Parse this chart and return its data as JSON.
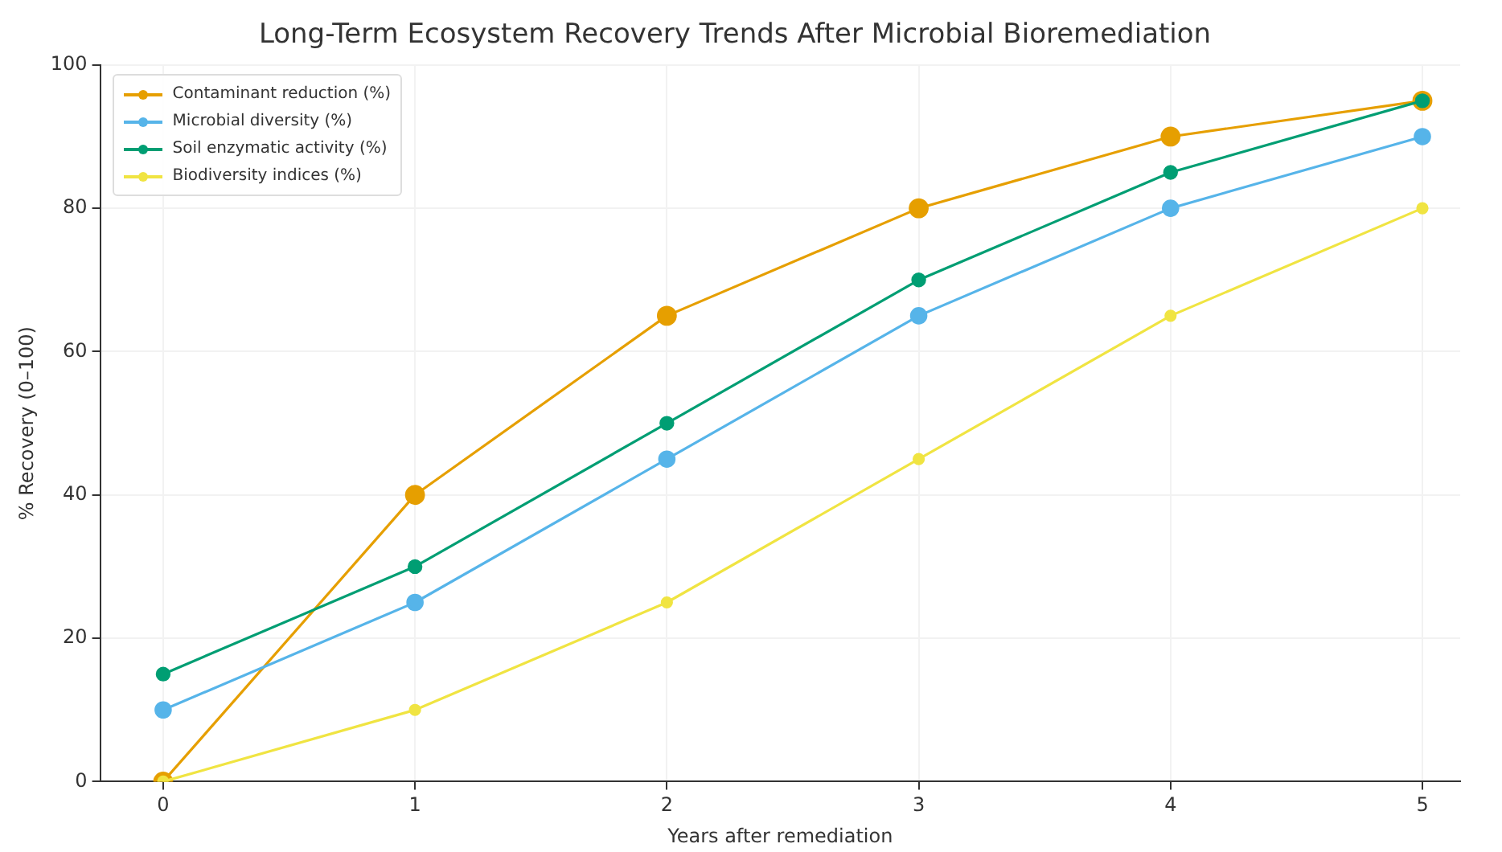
{
  "chart_data": {
    "type": "line",
    "title": "Long-Term Ecosystem Recovery Trends After Microbial Bioremediation",
    "xlabel": "Years after remediation",
    "ylabel": "% Recovery (0–100)",
    "x": [
      0,
      1,
      2,
      3,
      4,
      5
    ],
    "xlim": [
      -0.25,
      5.15
    ],
    "xticks": [
      0,
      1,
      2,
      3,
      4,
      5
    ],
    "ylim": [
      0,
      100
    ],
    "yticks": [
      0,
      20,
      40,
      60,
      80,
      100
    ],
    "grid": true,
    "legend": "top left",
    "marker": "circle",
    "line_style": "solid",
    "series": [
      {
        "name": "Contaminant reduction (%)",
        "color": "#e69f00",
        "values": [
          0,
          40,
          65,
          80,
          90,
          95
        ]
      },
      {
        "name": "Microbial diversity (%)",
        "color": "#56b4e9",
        "values": [
          10,
          25,
          45,
          65,
          80,
          90
        ]
      },
      {
        "name": "Soil enzymatic activity (%)",
        "color": "#009e73",
        "values": [
          15,
          30,
          50,
          70,
          85,
          95
        ]
      },
      {
        "name": "Biodiversity indices (%)",
        "color": "#f0e442",
        "values": [
          0,
          10,
          25,
          45,
          65,
          80
        ]
      }
    ]
  }
}
